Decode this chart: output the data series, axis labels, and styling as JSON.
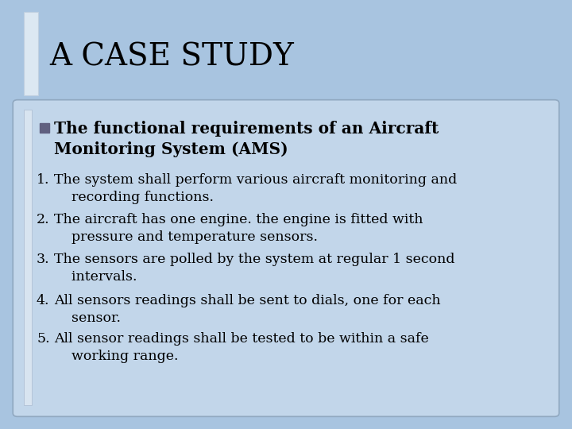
{
  "background_color": "#a8c4e0",
  "title": "A CASE STUDY",
  "title_fontsize": 28,
  "title_color": "#000000",
  "bullet_header_line1": "The functional requirements of an Aircraft",
  "bullet_header_line2": "Monitoring System (AMS)",
  "bullet_header_fontsize": 14.5,
  "items": [
    [
      "1.",
      "The system shall perform various aircraft monitoring and\n    recording functions."
    ],
    [
      "2.",
      "The aircraft has one engine. the engine is fitted with\n    pressure and temperature sensors."
    ],
    [
      "3.",
      "The sensors are polled by the system at regular 1 second\n    intervals."
    ],
    [
      "4.",
      "All sensors readings shall be sent to dials, one for each\n    sensor."
    ],
    [
      "5.",
      "All sensor readings shall be tested to be within a safe\n    working range."
    ]
  ],
  "item_fontsize": 12.5,
  "background_color_light": "#adc8e0",
  "content_box_color": "#c2d6ea",
  "content_box_edge_color": "#90a8c0",
  "title_bar_facecolor": "#dce8f2",
  "title_bar_edgecolor": "#c0d0e0",
  "bullet_square_color": "#606080",
  "left_bar_facecolor": "#d8e4f0",
  "left_bar_edgecolor": "#b0c0d4"
}
